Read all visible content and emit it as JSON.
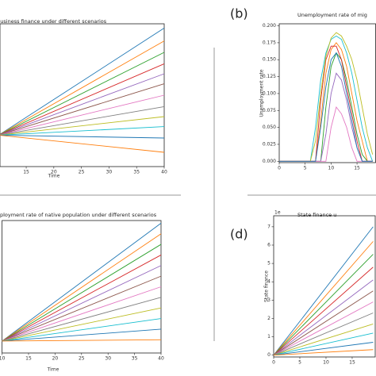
{
  "chart_data": [
    {
      "type": "line",
      "title": "Business finance under different scenarios",
      "xlabel": "Time",
      "x": [
        10,
        40
      ],
      "xlim": [
        10.25,
        40
      ],
      "xticks": [
        15,
        20,
        25,
        30,
        35,
        40
      ],
      "ylim": [
        0,
        1
      ],
      "series": [
        {
          "color": "#1f77b4",
          "values": [
            0.22,
            0.97
          ]
        },
        {
          "color": "#ff7f0e",
          "values": [
            0.22,
            0.88
          ]
        },
        {
          "color": "#2ca02c",
          "values": [
            0.22,
            0.8
          ]
        },
        {
          "color": "#d62728",
          "values": [
            0.22,
            0.72
          ]
        },
        {
          "color": "#9467bd",
          "values": [
            0.22,
            0.65
          ]
        },
        {
          "color": "#8c564b",
          "values": [
            0.22,
            0.58
          ]
        },
        {
          "color": "#e377c2",
          "values": [
            0.22,
            0.5
          ]
        },
        {
          "color": "#7f7f7f",
          "values": [
            0.22,
            0.42
          ]
        },
        {
          "color": "#bcbd22",
          "values": [
            0.22,
            0.35
          ]
        },
        {
          "color": "#17becf",
          "values": [
            0.22,
            0.28
          ]
        },
        {
          "color": "#1f77b4",
          "values": [
            0.22,
            0.2
          ]
        },
        {
          "color": "#ff7f0e",
          "values": [
            0.22,
            0.1
          ]
        }
      ]
    },
    {
      "type": "line",
      "label": "(b)",
      "title": "Unemployment rate of mig",
      "ylabel": "Unemployment rate",
      "x": [
        0,
        6,
        7,
        8,
        9,
        10,
        11,
        12,
        13,
        14,
        15,
        16,
        17,
        18
      ],
      "xlim": [
        0,
        18.6
      ],
      "xticks": [
        0,
        5,
        10,
        15
      ],
      "ylim": [
        -0.002,
        0.203
      ],
      "yticks": [
        {
          "value": 0,
          "label": "0.000"
        },
        {
          "value": 0.025,
          "label": "0.025"
        },
        {
          "value": 0.05,
          "label": "0.050"
        },
        {
          "value": 0.075,
          "label": "0.075"
        },
        {
          "value": 0.1,
          "label": "0.100"
        },
        {
          "value": 0.125,
          "label": "0.125"
        },
        {
          "value": 0.15,
          "label": "0.150"
        },
        {
          "value": 0.175,
          "label": "0.175"
        },
        {
          "value": 0.2,
          "label": "0.200"
        }
      ],
      "series": [
        {
          "color": "#17becf",
          "values": [
            0,
            0,
            0.05,
            0.12,
            0.16,
            0.18,
            0.185,
            0.18,
            0.16,
            0.13,
            0.09,
            0.05,
            0.02,
            0
          ]
        },
        {
          "color": "#ff7f0e",
          "values": [
            0,
            0,
            0,
            0.06,
            0.13,
            0.165,
            0.175,
            0.165,
            0.14,
            0.1,
            0.06,
            0.03,
            0,
            0
          ]
        },
        {
          "color": "#2ca02c",
          "values": [
            0,
            0,
            0,
            0,
            0.08,
            0.14,
            0.16,
            0.15,
            0.12,
            0.08,
            0.04,
            0.01,
            0,
            0
          ]
        },
        {
          "color": "#d62728",
          "values": [
            0,
            0,
            0,
            0.09,
            0.15,
            0.17,
            0.17,
            0.15,
            0.11,
            0.07,
            0.03,
            0,
            0,
            0
          ]
        },
        {
          "color": "#9467bd",
          "values": [
            0,
            0,
            0,
            0,
            0.04,
            0.1,
            0.13,
            0.12,
            0.09,
            0.05,
            0.02,
            0,
            0,
            0
          ]
        },
        {
          "color": "#bcbd22",
          "values": [
            0,
            0,
            0.03,
            0.1,
            0.155,
            0.182,
            0.19,
            0.185,
            0.17,
            0.15,
            0.12,
            0.08,
            0.04,
            0.01
          ]
        },
        {
          "color": "#e377c2",
          "values": [
            0,
            0,
            0,
            0,
            0,
            0.05,
            0.08,
            0.07,
            0.05,
            0.02,
            0,
            0,
            0,
            0
          ]
        },
        {
          "color": "#1f77b4",
          "values": [
            0,
            0,
            0,
            0.05,
            0.11,
            0.15,
            0.16,
            0.14,
            0.1,
            0.06,
            0.02,
            0,
            0,
            0
          ]
        }
      ]
    },
    {
      "type": "line",
      "title": "ployment rate of native population under different scenarios",
      "xlabel": "Time",
      "x": [
        10,
        40
      ],
      "xlim": [
        10,
        40
      ],
      "xticks": [
        10,
        15,
        20,
        25,
        30,
        35,
        40
      ],
      "ylim": [
        0,
        1
      ],
      "series": [
        {
          "color": "#1f77b4",
          "values": [
            0.09,
            0.98
          ]
        },
        {
          "color": "#ff7f0e",
          "values": [
            0.09,
            0.9
          ]
        },
        {
          "color": "#2ca02c",
          "values": [
            0.09,
            0.82
          ]
        },
        {
          "color": "#d62728",
          "values": [
            0.09,
            0.74
          ]
        },
        {
          "color": "#9467bd",
          "values": [
            0.09,
            0.66
          ]
        },
        {
          "color": "#8c564b",
          "values": [
            0.09,
            0.58
          ]
        },
        {
          "color": "#e377c2",
          "values": [
            0.09,
            0.5
          ]
        },
        {
          "color": "#7f7f7f",
          "values": [
            0.09,
            0.42
          ]
        },
        {
          "color": "#bcbd22",
          "values": [
            0.09,
            0.34
          ]
        },
        {
          "color": "#17becf",
          "values": [
            0.09,
            0.26
          ]
        },
        {
          "color": "#1f77b4",
          "values": [
            0.09,
            0.18
          ]
        },
        {
          "color": "#ff7f0e",
          "values": [
            0.09,
            0.1
          ]
        }
      ]
    },
    {
      "type": "line",
      "label": "(d)",
      "title": "State finance u",
      "ylabel": "State finance",
      "offset_label": "1e",
      "x": [
        0,
        19
      ],
      "xlim": [
        0,
        19.4
      ],
      "xticks": [
        0,
        5,
        10,
        15
      ],
      "ylim": [
        -0.1,
        7.6
      ],
      "yticks": [
        0,
        1,
        2,
        3,
        4,
        5,
        6,
        7
      ],
      "series": [
        {
          "color": "#1f77b4",
          "values": [
            0,
            7.0
          ]
        },
        {
          "color": "#ff7f0e",
          "values": [
            0,
            6.2
          ]
        },
        {
          "color": "#2ca02c",
          "values": [
            0,
            5.5
          ]
        },
        {
          "color": "#d62728",
          "values": [
            0,
            4.8
          ]
        },
        {
          "color": "#9467bd",
          "values": [
            0,
            4.1
          ]
        },
        {
          "color": "#8c564b",
          "values": [
            0,
            3.5
          ]
        },
        {
          "color": "#e377c2",
          "values": [
            0,
            2.9
          ]
        },
        {
          "color": "#7f7f7f",
          "values": [
            0,
            2.3
          ]
        },
        {
          "color": "#bcbd22",
          "values": [
            0,
            1.7
          ]
        },
        {
          "color": "#17becf",
          "values": [
            0,
            1.2
          ]
        },
        {
          "color": "#1f77b4",
          "values": [
            0,
            0.7
          ]
        },
        {
          "color": "#ff7f0e",
          "values": [
            0,
            0.3
          ]
        }
      ]
    }
  ]
}
